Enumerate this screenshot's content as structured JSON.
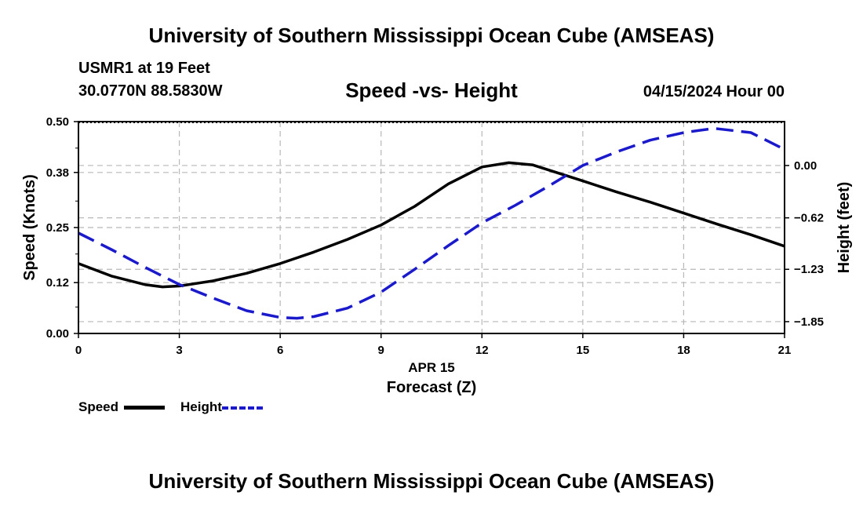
{
  "header": {
    "title": "University of Southern Mississippi Ocean Cube (AMSEAS)",
    "station": "USMR1 at 19 Feet",
    "coords": "30.0770N  88.5830W",
    "date": "04/15/2024 Hour 00"
  },
  "footer": {
    "title": "University of Southern Mississippi Ocean Cube (AMSEAS)"
  },
  "legend": {
    "speed_label": "Speed",
    "height_label": "Height"
  },
  "chart_data": {
    "type": "line",
    "title": "Speed -vs- Height",
    "xlabel": "Forecast (Z)",
    "xlabel_date": "APR 15",
    "ylabel_left": "Speed (Knots)",
    "ylabel_right": "Height (feet)",
    "xlim": [
      0,
      21
    ],
    "ylim_left": [
      0,
      0.5
    ],
    "ylim_right": [
      -1.99,
      0.52
    ],
    "x_ticks": [
      0,
      3,
      6,
      9,
      12,
      15,
      18,
      21
    ],
    "x_tick_labels": [
      "0",
      "3",
      "6",
      "9",
      "12",
      "15",
      "18",
      "21"
    ],
    "y_left_ticks": [
      0.0,
      0.12,
      0.25,
      0.38,
      0.5
    ],
    "y_left_tick_labels": [
      "0.00",
      "0.12",
      "0.25",
      "0.38",
      "0.50"
    ],
    "y_right_ticks": [
      0.0,
      -0.62,
      -1.23,
      -1.85
    ],
    "y_right_tick_labels": [
      "0.00",
      "−0.62",
      "−1.23",
      "−1.85"
    ],
    "grid": true,
    "series": [
      {
        "name": "Speed",
        "axis": "left",
        "color": "#000000",
        "x": [
          0,
          1,
          2,
          2.5,
          3,
          4,
          5,
          6,
          7,
          8,
          9,
          10,
          11,
          12,
          12.8,
          13.5,
          15,
          16,
          17,
          18,
          19,
          20,
          21
        ],
        "values": [
          0.165,
          0.135,
          0.115,
          0.11,
          0.112,
          0.124,
          0.142,
          0.165,
          0.192,
          0.222,
          0.256,
          0.3,
          0.353,
          0.393,
          0.403,
          0.398,
          0.36,
          0.334,
          0.31,
          0.284,
          0.258,
          0.233,
          0.206
        ]
      },
      {
        "name": "Height",
        "axis": "right",
        "color": "#1a1acc",
        "dashed": true,
        "x": [
          0,
          1,
          2,
          3,
          4,
          5,
          6,
          6.5,
          7,
          8,
          9,
          10,
          11,
          12,
          13,
          14,
          15,
          16,
          17,
          18,
          18.9,
          20,
          21
        ],
        "values": [
          -0.8,
          -1.0,
          -1.21,
          -1.41,
          -1.57,
          -1.72,
          -1.8,
          -1.81,
          -1.79,
          -1.69,
          -1.5,
          -1.23,
          -0.95,
          -0.68,
          -0.47,
          -0.24,
          0.0,
          0.16,
          0.3,
          0.39,
          0.44,
          0.39,
          0.19
        ]
      }
    ]
  }
}
